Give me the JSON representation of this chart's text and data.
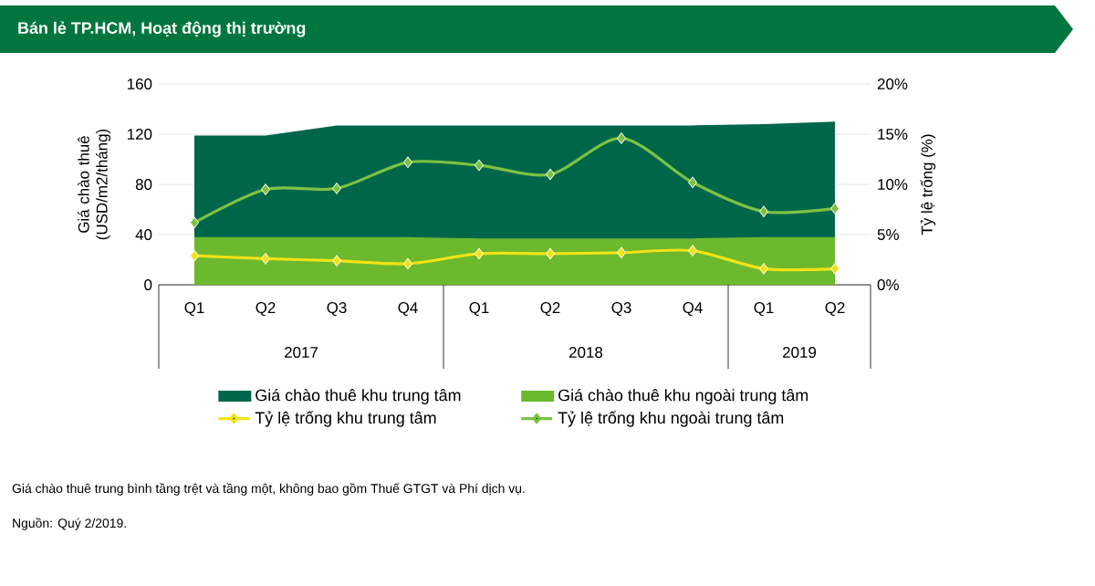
{
  "chart_data": {
    "type": "area",
    "title": "Bán lẻ TP.HCM, Hoạt động thị trường",
    "ylabel": "Giá chào thuê (USD/m2/tháng)",
    "y2label": "Tỷ lệ trống (%)",
    "categories": [
      "Q1",
      "Q2",
      "Q3",
      "Q4",
      "Q1",
      "Q2",
      "Q3",
      "Q4",
      "Q1",
      "Q2"
    ],
    "ylim": [
      0,
      160
    ],
    "yticks": [
      0,
      40,
      80,
      120,
      160
    ],
    "y2lim": [
      0,
      20
    ],
    "y2ticks": [
      {
        "value": 0,
        "label": "0%"
      },
      {
        "value": 5,
        "label": "5%"
      },
      {
        "value": 10,
        "label": "10%"
      },
      {
        "value": 15,
        "label": "15%"
      },
      {
        "value": 20,
        "label": "20%"
      }
    ],
    "grid": "y",
    "legend": "bottom",
    "annotations": [
      "2017",
      "2018",
      "2019",
      "Giá chào thuê trung bình tầng trệt và tầng một, không bao gồm Thuế GTGT và Phí dịch vụ.",
      "Nguồn: Quý 2/2019."
    ],
    "series": [
      {
        "name": "Giá chào thuê khu trung tâm",
        "color": "#00664a",
        "values": [
          119,
          119,
          127,
          127,
          127,
          127,
          127,
          127,
          128,
          130
        ]
      },
      {
        "name": "Giá chào thuê khu ngoài trung tâm",
        "color": "#6cb92e",
        "values": [
          38,
          38,
          38,
          38,
          37,
          37,
          37,
          37,
          38,
          38
        ]
      },
      {
        "name": "Tỷ lệ trống khu trung tâm",
        "type": "line",
        "axis": "y2",
        "marker": "diamond",
        "color": "#f2e316",
        "values": [
          2.9,
          2.6,
          2.4,
          2.1,
          3.1,
          3.1,
          3.2,
          3.4,
          1.6,
          1.6
        ]
      },
      {
        "name": "Tỷ lệ trống khu ngoài trung tâm",
        "type": "line",
        "axis": "y2",
        "marker": "diamond",
        "color": "#7cc242",
        "values": [
          6.2,
          9.5,
          9.6,
          12.2,
          11.9,
          11.0,
          14.6,
          10.2,
          7.3,
          7.6
        ]
      }
    ]
  }
}
